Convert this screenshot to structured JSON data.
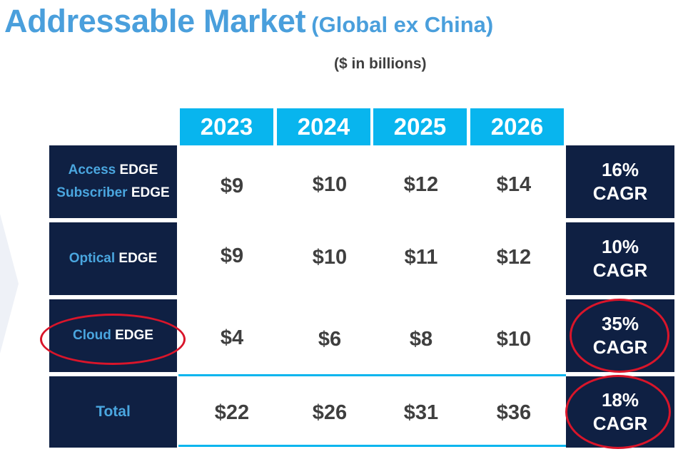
{
  "title": {
    "main": "Addressable Market",
    "sub": "(Global ex China)"
  },
  "units": "($ in billions)",
  "years": [
    "2023",
    "2024",
    "2025",
    "2026"
  ],
  "rows": [
    {
      "label_lines": [
        {
          "light": "Access",
          "white": "EDGE"
        },
        {
          "light": "Subscriber",
          "white": "EDGE"
        }
      ],
      "values": [
        "$9",
        "$10",
        "$12",
        "$14"
      ],
      "cagr_pct": "16%",
      "cagr_word": "CAGR"
    },
    {
      "label_lines": [
        {
          "light": "Optical",
          "white": "EDGE"
        }
      ],
      "values": [
        "$9",
        "$10",
        "$11",
        "$12"
      ],
      "cagr_pct": "10%",
      "cagr_word": "CAGR"
    },
    {
      "label_lines": [
        {
          "light": "Cloud",
          "white": "EDGE"
        }
      ],
      "values": [
        "$4",
        "$6",
        "$8",
        "$10"
      ],
      "cagr_pct": "35%",
      "cagr_word": "CAGR"
    },
    {
      "label": "Total",
      "values": [
        "$22",
        "$26",
        "$31",
        "$36"
      ],
      "cagr_pct": "18%",
      "cagr_word": "CAGR"
    }
  ],
  "colors": {
    "accent": "#4a9fdc",
    "header_blue": "#08b5ee",
    "navy": "#0f2043",
    "highlight_red": "#d9152a"
  }
}
